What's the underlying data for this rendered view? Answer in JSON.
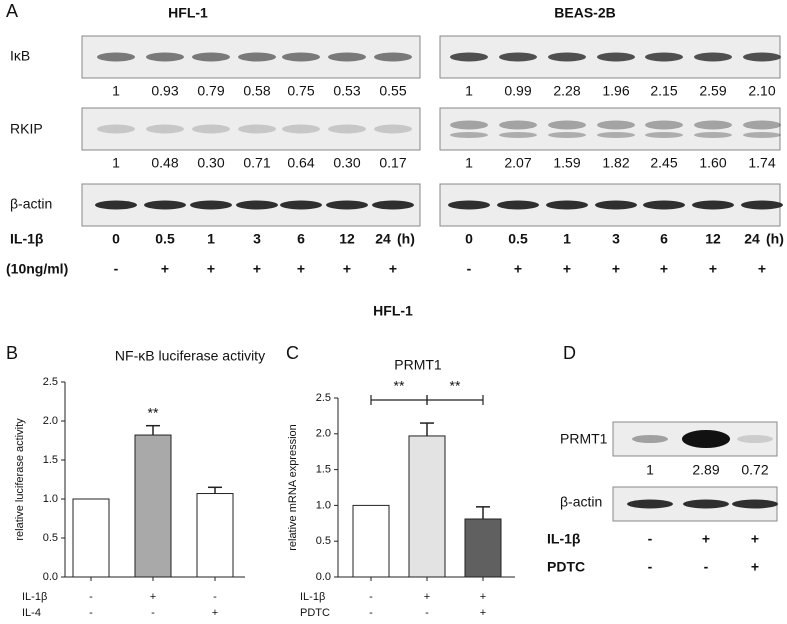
{
  "panel_a": {
    "label": "A",
    "row_labels": [
      "IκB",
      "RKIP",
      "β-actin"
    ],
    "cell_lines": [
      {
        "name": "HFL-1",
        "ikb_quant": [
          "1",
          "0.93",
          "0.79",
          "0.58",
          "0.75",
          "0.53",
          "0.55"
        ],
        "rkip_quant": [
          "1",
          "0.48",
          "0.30",
          "0.71",
          "0.64",
          "0.30",
          "0.17"
        ]
      },
      {
        "name": "BEAS-2B",
        "ikb_quant": [
          "1",
          "0.99",
          "2.28",
          "1.96",
          "2.15",
          "2.59",
          "2.10"
        ],
        "rkip_quant": [
          "1",
          "2.07",
          "1.59",
          "1.82",
          "2.45",
          "1.60",
          "1.74"
        ]
      }
    ],
    "treatment_label": "IL-1β",
    "time_points": [
      "0",
      "0.5",
      "1",
      "3",
      "6",
      "12",
      "24"
    ],
    "time_unit": "(h)",
    "dose_label": "(10ng/ml)",
    "dose_signs": [
      "-",
      "+",
      "+",
      "+",
      "+",
      "+",
      "+"
    ]
  },
  "subtitle": "HFL-1",
  "panel_b": {
    "label": "B",
    "chart": {
      "type": "bar",
      "title": "NF-κB luciferase activity",
      "y_label": "relative luciferase activity",
      "values": [
        1.0,
        1.82,
        1.07
      ],
      "errors": [
        null,
        0.12,
        0.08
      ],
      "colors": [
        "#ffffff",
        "#a9a9a9",
        "#ffffff"
      ],
      "ylim": [
        0,
        2.5
      ],
      "yticks": [
        {
          "value": 0,
          "label": "0.0"
        },
        0.5,
        {
          "value": 1,
          "label": "1.0"
        },
        1.5,
        {
          "value": 2,
          "label": "2.0"
        },
        2.5
      ],
      "annotations": [
        null,
        "**",
        null
      ],
      "conditions": [
        {
          "name": "IL-1β",
          "signs": [
            "-",
            "+",
            "-"
          ]
        },
        {
          "name": "IL-4",
          "signs": [
            "-",
            "-",
            "+"
          ]
        }
      ]
    }
  },
  "panel_c": {
    "label": "C",
    "chart": {
      "type": "bar",
      "title": "PRMT1",
      "y_label": "relative mRNA expression",
      "values": [
        1.0,
        1.97,
        0.81
      ],
      "errors": [
        null,
        0.18,
        0.17
      ],
      "colors": [
        "#ffffff",
        "#e3e3e3",
        "#606060"
      ],
      "ylim": [
        0,
        2.5
      ],
      "yticks": [
        {
          "value": 0,
          "label": "0.0"
        },
        0.5,
        {
          "value": 1,
          "label": "1.0"
        },
        1.5,
        {
          "value": 2,
          "label": "2.0"
        },
        2.5
      ],
      "significance": [
        "**",
        "**"
      ],
      "conditions": [
        {
          "name": "IL-1β",
          "signs": [
            "-",
            "+",
            "+"
          ]
        },
        {
          "name": "PDTC",
          "signs": [
            "-",
            "-",
            "+"
          ]
        }
      ]
    }
  },
  "panel_d": {
    "label": "D",
    "row_labels": [
      "PRMT1",
      "β-actin"
    ],
    "prmt1_quant": [
      "1",
      "2.89",
      "0.72"
    ],
    "conditions": [
      {
        "name": "IL-1β",
        "signs": [
          "-",
          "+",
          "+"
        ]
      },
      {
        "name": "PDTC",
        "signs": [
          "-",
          "-",
          "+"
        ]
      }
    ]
  }
}
